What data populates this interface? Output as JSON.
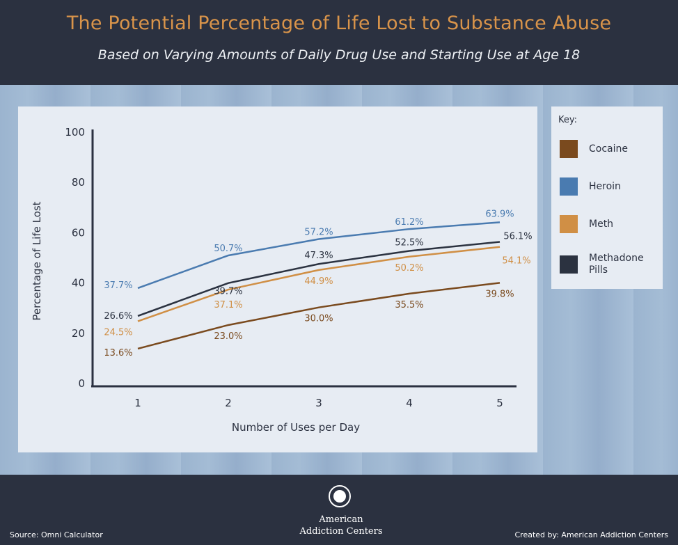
{
  "header": {
    "title": "The Potential Percentage of Life Lost to Substance Abuse",
    "subtitle": "Based on Varying Amounts of Daily Drug Use and Starting Use at Age 18"
  },
  "chart_data": {
    "type": "line",
    "xlabel": "Number of Uses per Day",
    "ylabel": "Percentage of Life Lost",
    "x": [
      1,
      2,
      3,
      4,
      5
    ],
    "xticks": [
      "1",
      "2",
      "3",
      "4",
      "5"
    ],
    "yticks": [
      "0",
      "20",
      "40",
      "60",
      "80",
      "100"
    ],
    "ylim": [
      0,
      100
    ],
    "grid": false,
    "legend_title": "Key:",
    "legend_position": "right",
    "series": [
      {
        "name": "Cocaine",
        "color": "#7a4a1e",
        "values": [
          13.6,
          23.0,
          30.0,
          35.5,
          39.8
        ],
        "labels": [
          "13.6%",
          "23.0%",
          "30.0%",
          "35.5%",
          "39.8%"
        ]
      },
      {
        "name": "Heroin",
        "color": "#4a7bb0",
        "values": [
          37.7,
          50.7,
          57.2,
          61.2,
          63.9
        ],
        "labels": [
          "37.7%",
          "50.7%",
          "57.2%",
          "61.2%",
          "63.9%"
        ]
      },
      {
        "name": "Meth",
        "color": "#d08f45",
        "values": [
          24.5,
          37.1,
          44.9,
          50.2,
          54.1
        ],
        "labels": [
          "24.5%",
          "37.1%",
          "44.9%",
          "50.2%",
          "54.1%"
        ]
      },
      {
        "name": "Methadone Pills",
        "color": "#2b3240",
        "values": [
          26.6,
          39.7,
          47.3,
          52.5,
          56.1
        ],
        "labels": [
          "26.6%",
          "39.7%",
          "47.3%",
          "52.5%",
          "56.1%"
        ]
      }
    ]
  },
  "footer": {
    "source": "Source: Omni Calculator",
    "created": "Created by: American Addiction Centers",
    "brand_line1": "American",
    "brand_line2": "Addiction Centers"
  }
}
